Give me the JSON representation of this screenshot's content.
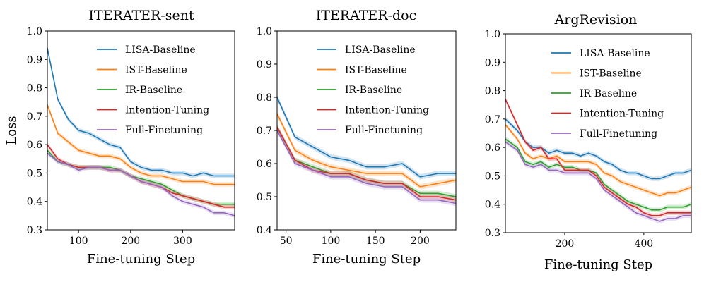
{
  "colors": {
    "LISA-Baseline": "#1f77b4",
    "IST-Baseline": "#ff7f0e",
    "IR-Baseline": "#2ca02c",
    "Intention-Tuning": "#d62728",
    "Full-Finetuning": "#9467bd"
  },
  "chart_data": [
    {
      "type": "line",
      "title": "ITERATER-sent",
      "xlabel": "Fine-tuning Step",
      "ylabel": "Loss",
      "xlim": [
        40,
        400
      ],
      "ylim": [
        0.3,
        1.0
      ],
      "xticks": [
        100,
        200,
        300
      ],
      "yticks": [
        0.3,
        0.4,
        0.5,
        0.6,
        0.7,
        0.8,
        0.9,
        1.0
      ],
      "yticklabels": [
        "0.3",
        "0.4",
        "0.5",
        "0.6",
        "0.7",
        "0.8",
        "0.9",
        "1.0"
      ],
      "legend": "top-right",
      "x": [
        40,
        60,
        80,
        100,
        120,
        140,
        160,
        180,
        200,
        220,
        240,
        260,
        280,
        300,
        320,
        340,
        360,
        380,
        400
      ],
      "series": [
        {
          "name": "LISA-Baseline",
          "values": [
            0.94,
            0.76,
            0.69,
            0.65,
            0.64,
            0.62,
            0.6,
            0.59,
            0.54,
            0.52,
            0.51,
            0.51,
            0.5,
            0.5,
            0.49,
            0.5,
            0.49,
            0.49,
            0.49
          ]
        },
        {
          "name": "IST-Baseline",
          "values": [
            0.74,
            0.64,
            0.61,
            0.58,
            0.57,
            0.56,
            0.56,
            0.55,
            0.52,
            0.5,
            0.49,
            0.49,
            0.48,
            0.47,
            0.47,
            0.47,
            0.46,
            0.46,
            0.46
          ]
        },
        {
          "name": "IR-Baseline",
          "values": [
            0.58,
            0.54,
            0.53,
            0.52,
            0.52,
            0.52,
            0.52,
            0.51,
            0.49,
            0.48,
            0.47,
            0.46,
            0.44,
            0.42,
            0.41,
            0.4,
            0.39,
            0.39,
            0.39
          ]
        },
        {
          "name": "Intention-Tuning",
          "values": [
            0.6,
            0.55,
            0.53,
            0.52,
            0.52,
            0.52,
            0.51,
            0.51,
            0.49,
            0.47,
            0.46,
            0.45,
            0.43,
            0.42,
            0.41,
            0.4,
            0.39,
            0.38,
            0.38
          ]
        },
        {
          "name": "Full-Finetuning",
          "values": [
            0.57,
            0.54,
            0.53,
            0.51,
            0.52,
            0.52,
            0.51,
            0.51,
            0.49,
            0.47,
            0.46,
            0.45,
            0.42,
            0.4,
            0.39,
            0.38,
            0.36,
            0.36,
            0.35
          ]
        }
      ]
    },
    {
      "type": "line",
      "title": "ITERATER-doc",
      "xlabel": "Fine-tuning Step",
      "ylabel": "",
      "xlim": [
        40,
        240
      ],
      "ylim": [
        0.4,
        1.0
      ],
      "xticks": [
        50,
        100,
        150,
        200
      ],
      "yticks": [
        0.4,
        0.5,
        0.6,
        0.7,
        0.8,
        0.9,
        1.0
      ],
      "yticklabels": [
        "0.4",
        "0.5",
        "0.6",
        "0.7",
        "0.8",
        "0.9",
        "1.0"
      ],
      "legend": "top-right",
      "x": [
        40,
        60,
        80,
        100,
        120,
        140,
        160,
        180,
        200,
        220,
        240
      ],
      "series": [
        {
          "name": "LISA-Baseline",
          "values": [
            0.8,
            0.68,
            0.65,
            0.62,
            0.61,
            0.59,
            0.59,
            0.6,
            0.56,
            0.57,
            0.57
          ]
        },
        {
          "name": "IST-Baseline",
          "values": [
            0.75,
            0.64,
            0.61,
            0.59,
            0.58,
            0.57,
            0.57,
            0.57,
            0.53,
            0.54,
            0.55
          ]
        },
        {
          "name": "IR-Baseline",
          "values": [
            0.71,
            0.61,
            0.59,
            0.57,
            0.57,
            0.55,
            0.54,
            0.54,
            0.51,
            0.51,
            0.5
          ]
        },
        {
          "name": "Intention-Tuning",
          "values": [
            0.71,
            0.61,
            0.58,
            0.57,
            0.57,
            0.55,
            0.54,
            0.54,
            0.5,
            0.5,
            0.49
          ]
        },
        {
          "name": "Full-Finetuning",
          "values": [
            0.7,
            0.6,
            0.58,
            0.56,
            0.56,
            0.54,
            0.53,
            0.53,
            0.49,
            0.49,
            0.48
          ]
        }
      ]
    },
    {
      "type": "line",
      "title": "ArgRevision",
      "xlabel": "Fine-tuning Step",
      "ylabel": "",
      "xlim": [
        50,
        520
      ],
      "ylim": [
        0.3,
        1.0
      ],
      "xticks": [
        200,
        400
      ],
      "yticks": [
        0.3,
        0.4,
        0.5,
        0.6,
        0.7,
        0.8,
        0.9,
        1.0
      ],
      "yticklabels": [
        "0.3",
        "0.4",
        "0.5",
        "0.6",
        "0.7",
        "0.8",
        "0.9",
        "1.0"
      ],
      "legend": "top-right",
      "x": [
        50,
        80,
        100,
        120,
        140,
        160,
        180,
        200,
        220,
        240,
        260,
        280,
        300,
        320,
        340,
        360,
        380,
        400,
        420,
        440,
        460,
        480,
        500,
        520
      ],
      "series": [
        {
          "name": "LISA-Baseline",
          "values": [
            0.7,
            0.66,
            0.62,
            0.6,
            0.6,
            0.58,
            0.59,
            0.58,
            0.58,
            0.57,
            0.58,
            0.57,
            0.55,
            0.54,
            0.52,
            0.51,
            0.51,
            0.5,
            0.49,
            0.49,
            0.5,
            0.51,
            0.51,
            0.52
          ]
        },
        {
          "name": "IST-Baseline",
          "values": [
            0.68,
            0.63,
            0.58,
            0.56,
            0.57,
            0.56,
            0.57,
            0.55,
            0.55,
            0.55,
            0.55,
            0.54,
            0.51,
            0.5,
            0.48,
            0.47,
            0.46,
            0.45,
            0.44,
            0.43,
            0.44,
            0.44,
            0.45,
            0.46
          ]
        },
        {
          "name": "IR-Baseline",
          "values": [
            0.63,
            0.6,
            0.55,
            0.54,
            0.55,
            0.53,
            0.54,
            0.53,
            0.53,
            0.52,
            0.52,
            0.51,
            0.47,
            0.45,
            0.43,
            0.41,
            0.4,
            0.39,
            0.38,
            0.38,
            0.39,
            0.39,
            0.39,
            0.4
          ]
        },
        {
          "name": "Intention-Tuning",
          "values": [
            0.77,
            0.68,
            0.62,
            0.59,
            0.6,
            0.56,
            0.56,
            0.52,
            0.52,
            0.52,
            0.52,
            0.5,
            0.46,
            0.44,
            0.42,
            0.4,
            0.39,
            0.37,
            0.36,
            0.36,
            0.37,
            0.37,
            0.37,
            0.37
          ]
        },
        {
          "name": "Full-Finetuning",
          "values": [
            0.62,
            0.59,
            0.54,
            0.53,
            0.54,
            0.52,
            0.52,
            0.51,
            0.51,
            0.51,
            0.51,
            0.49,
            0.45,
            0.43,
            0.41,
            0.39,
            0.37,
            0.36,
            0.35,
            0.34,
            0.35,
            0.35,
            0.36,
            0.36
          ]
        }
      ]
    }
  ]
}
